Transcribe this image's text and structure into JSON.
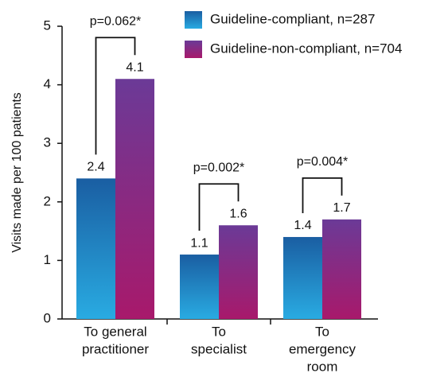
{
  "chart_data": {
    "type": "bar",
    "y_label": "Visits made per 100 patients",
    "categories": [
      [
        "To general",
        "practitioner"
      ],
      [
        "To",
        "specialist"
      ],
      [
        "To",
        "emergency",
        "room"
      ]
    ],
    "series": [
      {
        "name": "Guideline-compliant, n=287",
        "colors": [
          "#1a5ea2",
          "#29abe2"
        ],
        "values": [
          2.4,
          1.1,
          1.4
        ]
      },
      {
        "name": "Guideline-non-compliant, n=704",
        "colors": [
          "#6b3a97",
          "#a8196b"
        ],
        "values": [
          4.1,
          1.6,
          1.7
        ]
      }
    ],
    "annotations": [
      "p=0.062*",
      "p=0.002*",
      "p=0.004*"
    ],
    "ylim": [
      0,
      5
    ],
    "yticks": [
      0,
      1,
      2,
      3,
      4,
      5
    ],
    "legend": "top-right"
  }
}
